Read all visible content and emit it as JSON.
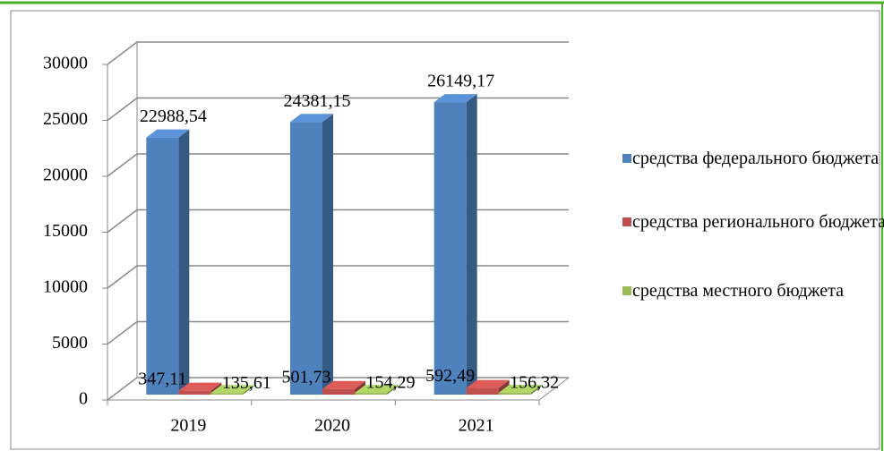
{
  "chart_data": {
    "type": "bar3d",
    "categories": [
      "2019",
      "2020",
      "2021"
    ],
    "series": [
      {
        "name": "средства федерального бюджета",
        "color": "#4f81bd",
        "values": [
          22988.54,
          24381.15,
          26149.17
        ],
        "value_labels": [
          "22988,54",
          "24381,15",
          "26149,17"
        ]
      },
      {
        "name": "средства регионального бюджета",
        "color": "#c0504d",
        "values": [
          347.11,
          501.73,
          592.49
        ],
        "value_labels": [
          "347,11",
          "501,73",
          "592,49"
        ]
      },
      {
        "name": "средства местного бюджета",
        "color": "#9bbb59",
        "values": [
          135.61,
          154.29,
          156.32
        ],
        "value_labels": [
          "135,61",
          "154,29",
          "156,32"
        ]
      }
    ],
    "ylim": [
      0,
      30000
    ],
    "yticks": [
      0,
      5000,
      10000,
      15000,
      20000,
      25000,
      30000
    ],
    "grid": true,
    "legend": "right"
  }
}
